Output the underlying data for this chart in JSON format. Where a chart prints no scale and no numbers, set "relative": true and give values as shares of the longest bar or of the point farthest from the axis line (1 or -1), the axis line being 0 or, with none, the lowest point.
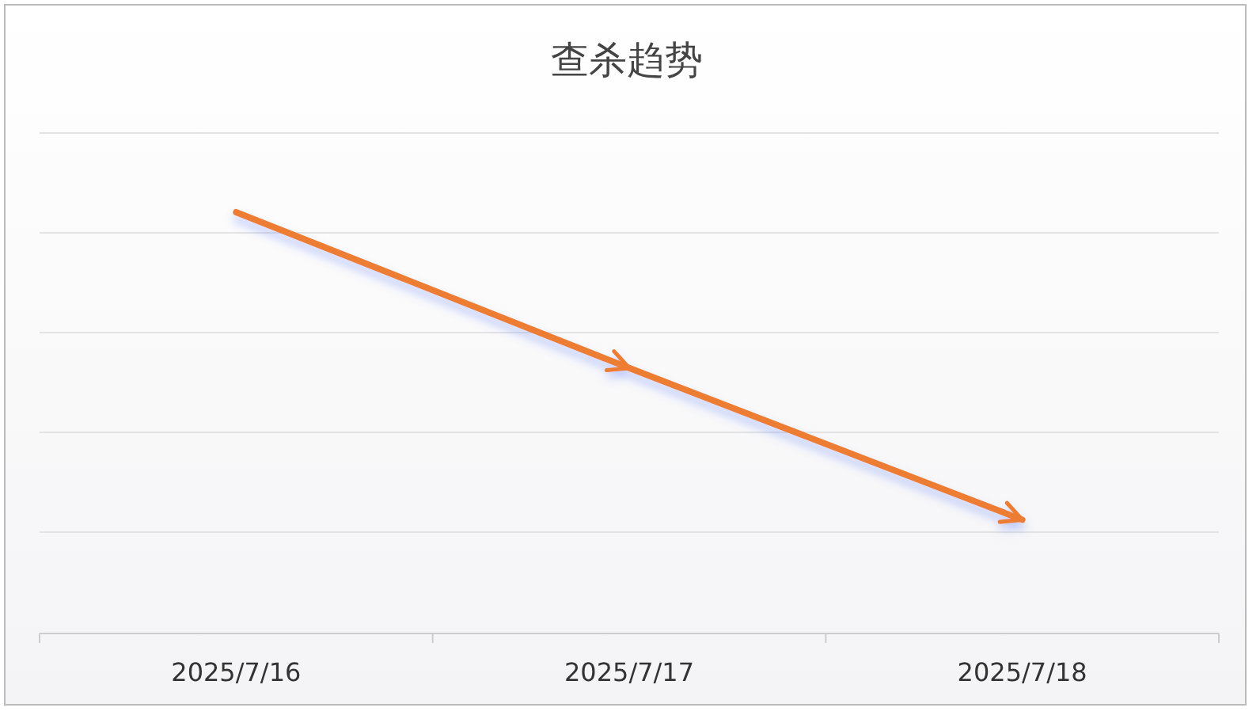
{
  "chart_data": {
    "type": "line",
    "title": "查杀趋势",
    "categories": [
      "2025/7/16",
      "2025/7/17",
      "2025/7/18"
    ],
    "series": [
      {
        "color": "#ed7d31",
        "values": [
          1,
          0.63,
          0.27
        ]
      }
    ],
    "relative": true,
    "grid": "y"
  }
}
